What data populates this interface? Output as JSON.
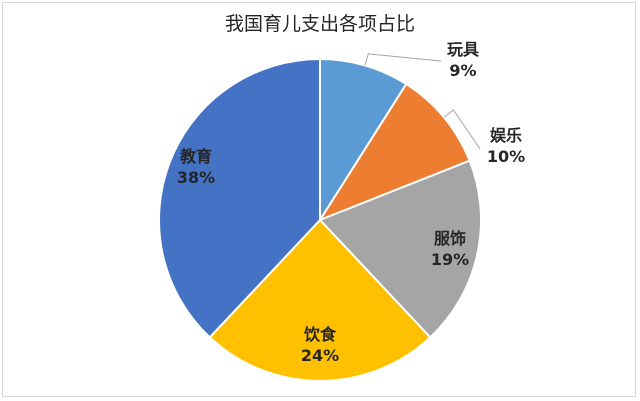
{
  "chart_data": {
    "type": "pie",
    "title": "我国育儿支出各项占比",
    "start_angle_deg": 0,
    "direction": "clockwise",
    "slices": [
      {
        "label": "玩具",
        "value": 9,
        "pct_text": "9%",
        "color": "#5B9BD5",
        "label_position": "outside-leader"
      },
      {
        "label": "娱乐",
        "value": 10,
        "pct_text": "10%",
        "color": "#ED7D31",
        "label_position": "outside-leader"
      },
      {
        "label": "服饰",
        "value": 19,
        "pct_text": "19%",
        "color": "#A5A5A5",
        "label_position": "inside"
      },
      {
        "label": "饮食",
        "value": 24,
        "pct_text": "24%",
        "color": "#FFC000",
        "label_position": "inside"
      },
      {
        "label": "教育",
        "value": 38,
        "pct_text": "38%",
        "color": "#4472C4",
        "label_position": "inside"
      }
    ]
  }
}
